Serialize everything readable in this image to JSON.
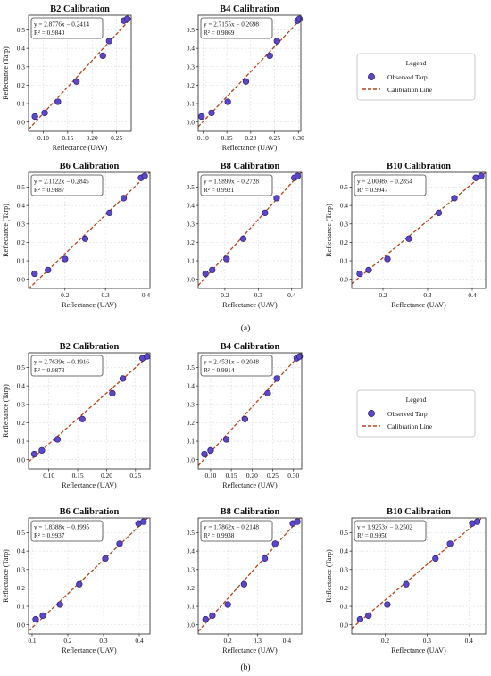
{
  "legend": {
    "title": "Legend",
    "observed_label": "Observed Tarp",
    "line_label": "Calibration Line"
  },
  "captions": {
    "a": "(a)",
    "b": "(b)"
  },
  "colors": {
    "marker": "#5b47c8",
    "marker_edge": "#2a1f78",
    "line": "#b5441b"
  },
  "chart_data": [
    {
      "type": "scatter",
      "panel": "a",
      "title": "B2 Calibration",
      "xlabel": "Reflectance (UAV)",
      "ylabel": "Reflectance (Tarp)",
      "equation": "y = 2.8776x − 0.2414",
      "r2": "R² = 0.9840",
      "slope": 2.8776,
      "intercept": -0.2414,
      "xlim": [
        0.07,
        0.28
      ],
      "ylim": [
        -0.05,
        0.58
      ],
      "xticks": [
        0.1,
        0.15,
        0.2,
        0.25
      ],
      "xticklabels": [
        "0.10",
        "0.15",
        "0.20",
        "0.25"
      ],
      "yticks": [
        0.0,
        0.1,
        0.2,
        0.3,
        0.4,
        0.5
      ],
      "yticklabels": [
        "0.0",
        "0.1",
        "0.2",
        "0.3",
        "0.4",
        "0.5"
      ],
      "x": [
        0.083,
        0.103,
        0.13,
        0.168,
        0.222,
        0.235,
        0.265,
        0.272
      ],
      "y": [
        0.03,
        0.05,
        0.11,
        0.22,
        0.36,
        0.44,
        0.55,
        0.56
      ]
    },
    {
      "type": "scatter",
      "panel": "a",
      "title": "B4 Calibration",
      "xlabel": "Reflectance (UAV)",
      "ylabel": "",
      "equation": "y = 2.7155x − 0.2698",
      "r2": "R² = 0.9869",
      "slope": 2.7155,
      "intercept": -0.2698,
      "xlim": [
        0.09,
        0.305
      ],
      "ylim": [
        -0.05,
        0.58
      ],
      "xticks": [
        0.1,
        0.15,
        0.2,
        0.25,
        0.3
      ],
      "xticklabels": [
        "0.10",
        "0.15",
        "0.20",
        "0.25",
        "0.30"
      ],
      "yticks": [
        0.0,
        0.1,
        0.2,
        0.3,
        0.4,
        0.5
      ],
      "yticklabels": [
        "0.0",
        "0.1",
        "0.2",
        "0.3",
        "0.4",
        "0.5"
      ],
      "x": [
        0.097,
        0.118,
        0.152,
        0.19,
        0.24,
        0.255,
        0.298,
        0.302
      ],
      "y": [
        0.03,
        0.05,
        0.11,
        0.22,
        0.36,
        0.44,
        0.55,
        0.56
      ]
    },
    {
      "type": "scatter",
      "panel": "a",
      "title": "B6 Calibration",
      "xlabel": "Reflectance (UAV)",
      "ylabel": "Reflectance (Tarp)",
      "equation": "y = 2.1122x − 0.2845",
      "r2": "R² = 0.9887",
      "slope": 2.1122,
      "intercept": -0.2845,
      "xlim": [
        0.11,
        0.41
      ],
      "ylim": [
        -0.05,
        0.58
      ],
      "xticks": [
        0.2,
        0.3,
        0.4
      ],
      "xticklabels": [
        "0.2",
        "0.3",
        "0.4"
      ],
      "yticks": [
        0.0,
        0.1,
        0.2,
        0.3,
        0.4,
        0.5
      ],
      "yticklabels": [
        "0.0",
        "0.1",
        "0.2",
        "0.3",
        "0.4",
        "0.5"
      ],
      "x": [
        0.125,
        0.158,
        0.2,
        0.25,
        0.31,
        0.345,
        0.388,
        0.397
      ],
      "y": [
        0.03,
        0.05,
        0.11,
        0.22,
        0.36,
        0.44,
        0.55,
        0.56
      ]
    },
    {
      "type": "scatter",
      "panel": "a",
      "title": "B8 Calibration",
      "xlabel": "Reflectance (UAV)",
      "ylabel": "",
      "equation": "y = 1.9899x − 0.2728",
      "r2": "R² = 0.9921",
      "slope": 1.9899,
      "intercept": -0.2728,
      "xlim": [
        0.12,
        0.43
      ],
      "ylim": [
        -0.05,
        0.58
      ],
      "xticks": [
        0.2,
        0.3,
        0.4
      ],
      "xticklabels": [
        "0.2",
        "0.3",
        "0.4"
      ],
      "yticks": [
        0.0,
        0.1,
        0.2,
        0.3,
        0.4,
        0.5
      ],
      "yticklabels": [
        "0.0",
        "0.1",
        "0.2",
        "0.3",
        "0.4",
        "0.5"
      ],
      "x": [
        0.142,
        0.162,
        0.205,
        0.255,
        0.32,
        0.355,
        0.408,
        0.418
      ],
      "y": [
        0.03,
        0.05,
        0.11,
        0.22,
        0.36,
        0.44,
        0.55,
        0.56
      ]
    },
    {
      "type": "scatter",
      "panel": "a",
      "title": "B10 Calibration",
      "xlabel": "Reflectance (UAV)",
      "ylabel": "Reflectance (Tarp)",
      "equation": "y = 2.0098x − 0.2854",
      "r2": "R² = 0.9947",
      "slope": 2.0098,
      "intercept": -0.2854,
      "xlim": [
        0.13,
        0.43
      ],
      "ylim": [
        -0.05,
        0.58
      ],
      "xticks": [
        0.2,
        0.3,
        0.4
      ],
      "xticklabels": [
        "0.2",
        "0.3",
        "0.4"
      ],
      "yticks": [
        0.0,
        0.1,
        0.2,
        0.3,
        0.4,
        0.5
      ],
      "yticklabels": [
        "0.0",
        "0.1",
        "0.2",
        "0.3",
        "0.4",
        "0.5"
      ],
      "x": [
        0.148,
        0.168,
        0.21,
        0.258,
        0.325,
        0.36,
        0.408,
        0.42
      ],
      "y": [
        0.03,
        0.05,
        0.11,
        0.22,
        0.36,
        0.44,
        0.55,
        0.56
      ]
    },
    {
      "type": "scatter",
      "panel": "b",
      "title": "B2 Calibration",
      "xlabel": "Reflectance (UAV)",
      "ylabel": "Reflectance (Tarp)",
      "equation": "y = 2.7639x − 0.1916",
      "r2": "R² = 0.9873",
      "slope": 2.7639,
      "intercept": -0.1916,
      "xlim": [
        0.065,
        0.275
      ],
      "ylim": [
        -0.05,
        0.58
      ],
      "xticks": [
        0.1,
        0.15,
        0.2,
        0.25
      ],
      "xticklabels": [
        "0.10",
        "0.15",
        "0.20",
        "0.25"
      ],
      "yticks": [
        0.0,
        0.1,
        0.2,
        0.3,
        0.4,
        0.5
      ],
      "yticklabels": [
        "0.0",
        "0.1",
        "0.2",
        "0.3",
        "0.4",
        "0.5"
      ],
      "x": [
        0.075,
        0.088,
        0.115,
        0.158,
        0.21,
        0.228,
        0.262,
        0.27
      ],
      "y": [
        0.03,
        0.05,
        0.11,
        0.22,
        0.36,
        0.44,
        0.55,
        0.56
      ]
    },
    {
      "type": "scatter",
      "panel": "b",
      "title": "B4 Calibration",
      "xlabel": "Reflectance (UAV)",
      "ylabel": "",
      "equation": "y = 2.4531x − 0.2048",
      "r2": "R² = 0.9914",
      "slope": 2.4531,
      "intercept": -0.2048,
      "xlim": [
        0.07,
        0.32
      ],
      "ylim": [
        -0.05,
        0.58
      ],
      "xticks": [
        0.1,
        0.15,
        0.2,
        0.25,
        0.3
      ],
      "xticklabels": [
        "0.10",
        "0.15",
        "0.20",
        "0.25",
        "0.30"
      ],
      "yticks": [
        0.0,
        0.1,
        0.2,
        0.3,
        0.4,
        0.5
      ],
      "yticklabels": [
        "0.0",
        "0.1",
        "0.2",
        "0.3",
        "0.4",
        "0.5"
      ],
      "x": [
        0.085,
        0.1,
        0.138,
        0.183,
        0.238,
        0.26,
        0.308,
        0.315
      ],
      "y": [
        0.03,
        0.05,
        0.11,
        0.22,
        0.36,
        0.44,
        0.55,
        0.56
      ]
    },
    {
      "type": "scatter",
      "panel": "b",
      "title": "B6 Calibration",
      "xlabel": "Reflectance (UAV)",
      "ylabel": "Reflectance (Tarp)",
      "equation": "y = 1.8388x − 0.1995",
      "r2": "R² = 0.9937",
      "slope": 1.8388,
      "intercept": -0.1995,
      "xlim": [
        0.09,
        0.43
      ],
      "ylim": [
        -0.05,
        0.58
      ],
      "xticks": [
        0.1,
        0.2,
        0.3,
        0.4
      ],
      "xticklabels": [
        "0.1",
        "0.2",
        "0.3",
        "0.4"
      ],
      "yticks": [
        0.0,
        0.1,
        0.2,
        0.3,
        0.4,
        0.5
      ],
      "yticklabels": [
        "0.0",
        "0.1",
        "0.2",
        "0.3",
        "0.4",
        "0.5"
      ],
      "x": [
        0.11,
        0.13,
        0.178,
        0.232,
        0.305,
        0.345,
        0.398,
        0.412
      ],
      "y": [
        0.03,
        0.05,
        0.11,
        0.22,
        0.36,
        0.44,
        0.55,
        0.56
      ]
    },
    {
      "type": "scatter",
      "panel": "b",
      "title": "B8 Calibration",
      "xlabel": "Reflectance (UAV)",
      "ylabel": "",
      "equation": "y = 1.7862x − 0.2148",
      "r2": "R² = 0.9938",
      "slope": 1.7862,
      "intercept": -0.2148,
      "xlim": [
        0.1,
        0.45
      ],
      "ylim": [
        -0.05,
        0.58
      ],
      "xticks": [
        0.2,
        0.3,
        0.4
      ],
      "xticklabels": [
        "0.2",
        "0.3",
        "0.4"
      ],
      "yticks": [
        0.0,
        0.1,
        0.2,
        0.3,
        0.4,
        0.5
      ],
      "yticklabels": [
        "0.0",
        "0.1",
        "0.2",
        "0.3",
        "0.4",
        "0.5"
      ],
      "x": [
        0.125,
        0.148,
        0.2,
        0.255,
        0.325,
        0.36,
        0.42,
        0.435
      ],
      "y": [
        0.03,
        0.05,
        0.11,
        0.22,
        0.36,
        0.44,
        0.55,
        0.56
      ]
    },
    {
      "type": "scatter",
      "panel": "b",
      "title": "B10 Calibration",
      "xlabel": "Reflectance (UAV)",
      "ylabel": "Reflectance (Tarp)",
      "equation": "y = 1.9253x − 0.2502",
      "r2": "R² = 0.9950",
      "slope": 1.9253,
      "intercept": -0.2502,
      "xlim": [
        0.12,
        0.44
      ],
      "ylim": [
        -0.05,
        0.58
      ],
      "xticks": [
        0.2,
        0.3,
        0.4
      ],
      "xticklabels": [
        "0.2",
        "0.3",
        "0.4"
      ],
      "yticks": [
        0.0,
        0.1,
        0.2,
        0.3,
        0.4,
        0.5
      ],
      "yticklabels": [
        "0.0",
        "0.1",
        "0.2",
        "0.3",
        "0.4",
        "0.5"
      ],
      "x": [
        0.14,
        0.16,
        0.205,
        0.25,
        0.32,
        0.355,
        0.408,
        0.42
      ],
      "y": [
        0.03,
        0.05,
        0.11,
        0.22,
        0.36,
        0.44,
        0.55,
        0.56
      ]
    }
  ]
}
